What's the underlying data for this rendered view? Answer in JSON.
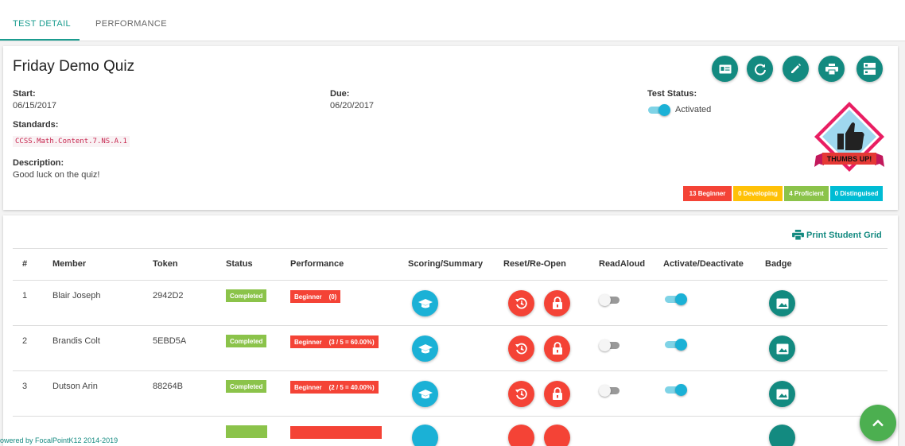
{
  "tabs": [
    {
      "label": "TEST DETAIL",
      "active": true
    },
    {
      "label": "PERFORMANCE",
      "active": false
    }
  ],
  "quiz": {
    "title": "Friday Demo Quiz",
    "start_label": "Start:",
    "start": "06/15/2017",
    "due_label": "Due:",
    "due": "06/20/2017",
    "standards_label": "Standards:",
    "standard": "CCSS.Math.Content.7.NS.A.1",
    "description_label": "Description:",
    "description": "Good luck on the quiz!",
    "test_status_label": "Test Status:",
    "test_status": "Activated",
    "badge_text": "THUMBS UP!"
  },
  "actions": [
    "id-card-icon",
    "refresh-icon",
    "edit-icon",
    "print-icon",
    "dns-icon"
  ],
  "levels": [
    {
      "label": "13 Beginner",
      "color": "#f44336"
    },
    {
      "label": "0 Developing",
      "color": "#ffc107"
    },
    {
      "label": "4 Proficient",
      "color": "#8bc34a"
    },
    {
      "label": "0 Distinguised",
      "color": "#00bcd4"
    }
  ],
  "grid": {
    "print_label": "Print Student Grid",
    "headers": [
      "#",
      "Member",
      "Token",
      "Status",
      "Performance",
      "Scoring/Summary",
      "Reset/Re-Open",
      "ReadAloud",
      "Activate/Deactivate",
      "Badge"
    ],
    "rows": [
      {
        "num": "1",
        "member": "Blair Joseph",
        "token": "2942D2",
        "status": "Completed",
        "performance": "Beginner    (0)",
        "readaloud": false,
        "active": true
      },
      {
        "num": "2",
        "member": "Brandis Colt",
        "token": "5EBD5A",
        "status": "Completed",
        "performance": "Beginner    (3 / 5 = 60.00%)",
        "readaloud": false,
        "active": true
      },
      {
        "num": "3",
        "member": "Dutson Arin",
        "token": "88264B",
        "status": "Completed",
        "performance": "Beginner    (2 / 5 = 40.00%)",
        "readaloud": false,
        "active": true
      }
    ]
  },
  "footer": "owered by FocalPointK12 2014-2019",
  "colors": {
    "teal": "#138a80",
    "blue": "#1bb1d6",
    "red": "#f44336",
    "green": "#8bc34a"
  }
}
